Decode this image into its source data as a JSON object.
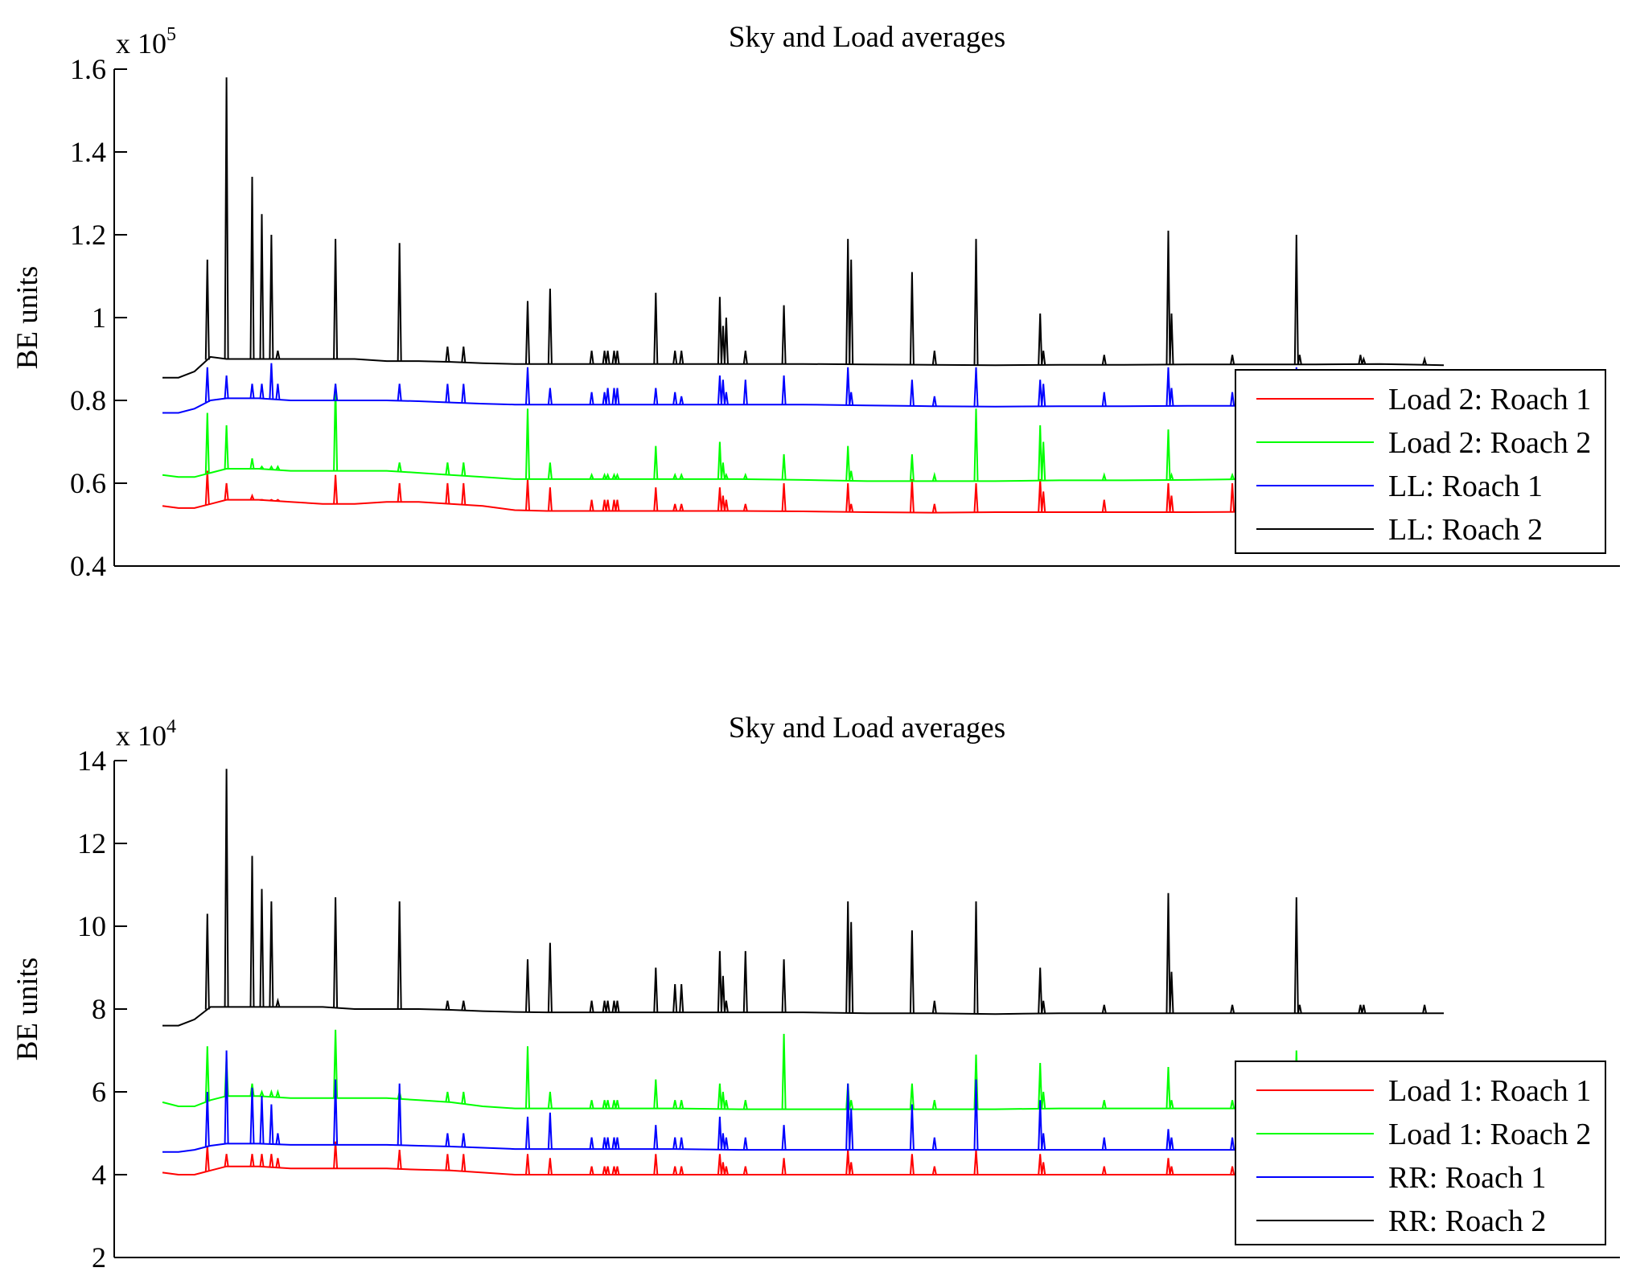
{
  "chart_data": [
    {
      "type": "line",
      "title": "Sky and Load averages",
      "xlabel": "",
      "ylabel": "BE units",
      "y_exponent_label": "x 10",
      "y_exponent_power": "5",
      "ylim": [
        0.4,
        1.6
      ],
      "y_ticks": [
        "0.4",
        "0.6",
        "0.8",
        "1",
        "1.2",
        "1.4",
        "1.6"
      ],
      "x_ticks": [],
      "grid": false,
      "legend_position": "bottom-right",
      "spike_x": [
        1.4,
        2.0,
        2.8,
        3.1,
        3.4,
        3.6,
        5.4,
        7.4,
        8.9,
        9.4,
        11.4,
        12.1,
        13.4,
        13.8,
        13.9,
        14.1,
        14.2,
        15.4,
        16.0,
        16.2,
        17.4,
        17.5,
        17.6,
        18.2,
        19.4,
        21.4,
        21.5,
        23.4,
        24.1,
        25.4,
        27.4,
        27.5,
        29.4,
        31.4,
        31.5,
        33.4,
        35.4,
        35.5,
        37.4,
        37.5,
        39.4
      ],
      "series": [
        {
          "name": "Load 2: Roach 1",
          "color": "#ff0000",
          "x": [
            0,
            0.5,
            1,
            1.5,
            2,
            3,
            4,
            5,
            6,
            7,
            8,
            9,
            10,
            11,
            12,
            14,
            16,
            18,
            20,
            22,
            24,
            26,
            28,
            30,
            32,
            34,
            36,
            38,
            40
          ],
          "values": [
            0.545,
            0.54,
            0.54,
            0.55,
            0.56,
            0.56,
            0.555,
            0.55,
            0.55,
            0.555,
            0.555,
            0.55,
            0.545,
            0.535,
            0.533,
            0.533,
            0.533,
            0.533,
            0.532,
            0.53,
            0.529,
            0.53,
            0.53,
            0.53,
            0.53,
            0.531,
            0.535,
            0.535,
            0.535
          ],
          "spikes": [
            0.63,
            0.6,
            0.57,
            0.56,
            0.56,
            0.56,
            0.62,
            0.6,
            0.6,
            0.6,
            0.61,
            0.59,
            0.56,
            0.56,
            0.56,
            0.56,
            0.56,
            0.59,
            0.55,
            0.55,
            0.59,
            0.57,
            0.56,
            0.55,
            0.6,
            0.6,
            0.55,
            0.61,
            0.55,
            0.6,
            0.61,
            0.58,
            0.56,
            0.6,
            0.57,
            0.6,
            0.6,
            0.58,
            0.58,
            0.56,
            0.57
          ]
        },
        {
          "name": "Load 2: Roach 2",
          "color": "#00ff00",
          "x": [
            0,
            0.5,
            1,
            1.5,
            2,
            3,
            4,
            5,
            6,
            7,
            8,
            9,
            10,
            11,
            12,
            14,
            16,
            18,
            20,
            22,
            24,
            26,
            28,
            30,
            32,
            34,
            36,
            38,
            40
          ],
          "values": [
            0.62,
            0.615,
            0.615,
            0.625,
            0.635,
            0.635,
            0.63,
            0.63,
            0.63,
            0.63,
            0.625,
            0.62,
            0.615,
            0.61,
            0.61,
            0.61,
            0.61,
            0.61,
            0.608,
            0.605,
            0.605,
            0.605,
            0.607,
            0.607,
            0.608,
            0.61,
            0.61,
            0.61,
            0.61
          ],
          "spikes": [
            0.77,
            0.74,
            0.66,
            0.64,
            0.64,
            0.64,
            0.84,
            0.65,
            0.65,
            0.65,
            0.78,
            0.65,
            0.62,
            0.62,
            0.62,
            0.62,
            0.62,
            0.69,
            0.62,
            0.62,
            0.7,
            0.65,
            0.62,
            0.62,
            0.67,
            0.69,
            0.63,
            0.67,
            0.62,
            0.78,
            0.74,
            0.7,
            0.62,
            0.73,
            0.62,
            0.62,
            0.8,
            0.67,
            0.65,
            0.62,
            0.63
          ]
        },
        {
          "name": "LL: Roach 1",
          "color": "#0000ff",
          "x": [
            0,
            0.5,
            1,
            1.5,
            2,
            3,
            4,
            5,
            6,
            7,
            8,
            9,
            10,
            11,
            12,
            14,
            16,
            18,
            20,
            22,
            24,
            26,
            28,
            30,
            32,
            34,
            36,
            38,
            40
          ],
          "values": [
            0.77,
            0.77,
            0.78,
            0.8,
            0.805,
            0.805,
            0.8,
            0.8,
            0.8,
            0.8,
            0.798,
            0.795,
            0.792,
            0.79,
            0.79,
            0.79,
            0.79,
            0.79,
            0.79,
            0.788,
            0.786,
            0.785,
            0.786,
            0.786,
            0.787,
            0.787,
            0.788,
            0.788,
            0.788
          ],
          "spikes": [
            0.88,
            0.86,
            0.84,
            0.84,
            0.89,
            0.84,
            0.84,
            0.84,
            0.84,
            0.84,
            0.88,
            0.83,
            0.82,
            0.82,
            0.83,
            0.83,
            0.83,
            0.83,
            0.82,
            0.81,
            0.86,
            0.85,
            0.82,
            0.85,
            0.86,
            0.88,
            0.82,
            0.85,
            0.81,
            0.88,
            0.85,
            0.84,
            0.82,
            0.88,
            0.83,
            0.82,
            0.88,
            0.84,
            0.83,
            0.81,
            0.82
          ]
        },
        {
          "name": "LL: Roach 2",
          "color": "#000000",
          "x": [
            0,
            0.5,
            1,
            1.5,
            2,
            3,
            4,
            5,
            6,
            7,
            8,
            9,
            10,
            11,
            12,
            14,
            16,
            18,
            20,
            22,
            24,
            26,
            28,
            30,
            32,
            34,
            36,
            38,
            40
          ],
          "values": [
            0.855,
            0.855,
            0.87,
            0.905,
            0.9,
            0.9,
            0.9,
            0.9,
            0.9,
            0.895,
            0.895,
            0.893,
            0.89,
            0.888,
            0.888,
            0.888,
            0.888,
            0.888,
            0.888,
            0.887,
            0.886,
            0.885,
            0.886,
            0.886,
            0.887,
            0.887,
            0.887,
            0.888,
            0.885
          ],
          "spikes": [
            1.14,
            1.58,
            1.34,
            1.25,
            1.2,
            0.92,
            1.19,
            1.18,
            0.93,
            0.93,
            1.04,
            1.07,
            0.92,
            0.92,
            0.92,
            0.92,
            0.92,
            1.06,
            0.92,
            0.92,
            1.05,
            0.98,
            1.0,
            0.92,
            1.03,
            1.19,
            1.14,
            1.11,
            0.92,
            1.19,
            1.01,
            0.92,
            0.91,
            1.21,
            1.01,
            0.91,
            1.2,
            0.91,
            0.91,
            0.9,
            0.9
          ]
        }
      ]
    },
    {
      "type": "line",
      "title": "Sky and Load averages",
      "xlabel": "",
      "ylabel": "BE units",
      "y_exponent_label": "x 10",
      "y_exponent_power": "4",
      "ylim": [
        2,
        14
      ],
      "y_ticks": [
        "2",
        "4",
        "6",
        "8",
        "10",
        "12",
        "14"
      ],
      "x_ticks": [],
      "grid": false,
      "legend_position": "bottom-right",
      "spike_x": [
        1.4,
        2.0,
        2.8,
        3.1,
        3.4,
        3.6,
        5.4,
        7.4,
        8.9,
        9.4,
        11.4,
        12.1,
        13.4,
        13.8,
        13.9,
        14.1,
        14.2,
        15.4,
        16.0,
        16.2,
        17.4,
        17.5,
        17.6,
        18.2,
        19.4,
        21.4,
        21.5,
        23.4,
        24.1,
        25.4,
        27.4,
        27.5,
        29.4,
        31.4,
        31.5,
        33.4,
        35.4,
        35.5,
        37.4,
        37.5,
        39.4
      ],
      "series": [
        {
          "name": "Load 1: Roach 1",
          "color": "#ff0000",
          "x": [
            0,
            0.5,
            1,
            1.5,
            2,
            3,
            4,
            5,
            6,
            7,
            8,
            9,
            10,
            11,
            12,
            14,
            16,
            18,
            20,
            22,
            24,
            26,
            28,
            30,
            32,
            34,
            36,
            38,
            40
          ],
          "values": [
            4.05,
            4.0,
            4.0,
            4.1,
            4.2,
            4.2,
            4.15,
            4.15,
            4.15,
            4.15,
            4.12,
            4.1,
            4.05,
            4.0,
            4.0,
            4.0,
            4.0,
            4.0,
            4.0,
            4.0,
            4.0,
            4.0,
            4.0,
            4.0,
            4.0,
            4.0,
            4.0,
            4.0,
            4.0
          ],
          "spikes": [
            4.7,
            4.5,
            4.5,
            4.5,
            4.5,
            4.4,
            4.8,
            4.6,
            4.5,
            4.5,
            4.5,
            4.4,
            4.2,
            4.2,
            4.2,
            4.2,
            4.2,
            4.5,
            4.2,
            4.2,
            4.5,
            4.3,
            4.2,
            4.2,
            4.4,
            4.6,
            4.3,
            4.5,
            4.2,
            4.6,
            4.5,
            4.3,
            4.2,
            4.4,
            4.2,
            4.2,
            4.5,
            4.3,
            4.3,
            4.2,
            4.2
          ]
        },
        {
          "name": "Load 1: Roach 2",
          "color": "#00ff00",
          "x": [
            0,
            0.5,
            1,
            1.5,
            2,
            3,
            4,
            5,
            6,
            7,
            8,
            9,
            10,
            11,
            12,
            14,
            16,
            18,
            20,
            22,
            24,
            26,
            28,
            30,
            32,
            34,
            36,
            38,
            40
          ],
          "values": [
            5.75,
            5.65,
            5.65,
            5.8,
            5.9,
            5.9,
            5.85,
            5.85,
            5.85,
            5.85,
            5.8,
            5.75,
            5.65,
            5.6,
            5.6,
            5.6,
            5.6,
            5.58,
            5.58,
            5.58,
            5.58,
            5.58,
            5.6,
            5.6,
            5.6,
            5.6,
            5.62,
            5.62,
            5.62
          ],
          "spikes": [
            7.1,
            6.8,
            6.2,
            6.0,
            6.0,
            6.0,
            7.5,
            6.0,
            6.0,
            6.0,
            7.1,
            6.0,
            5.8,
            5.8,
            5.8,
            5.8,
            5.8,
            6.3,
            5.8,
            5.8,
            6.2,
            6.0,
            5.8,
            5.8,
            7.4,
            6.2,
            5.8,
            6.2,
            5.8,
            6.9,
            6.7,
            6.0,
            5.8,
            6.6,
            5.8,
            5.8,
            7.0,
            6.2,
            6.0,
            5.8,
            5.8
          ]
        },
        {
          "name": "RR: Roach 1",
          "color": "#0000ff",
          "x": [
            0,
            0.5,
            1,
            1.5,
            2,
            3,
            4,
            5,
            6,
            7,
            8,
            9,
            10,
            11,
            12,
            14,
            16,
            18,
            20,
            22,
            24,
            26,
            28,
            30,
            32,
            34,
            36,
            38,
            40
          ],
          "values": [
            4.55,
            4.55,
            4.6,
            4.7,
            4.75,
            4.75,
            4.72,
            4.72,
            4.72,
            4.72,
            4.7,
            4.68,
            4.65,
            4.62,
            4.62,
            4.62,
            4.62,
            4.6,
            4.6,
            4.6,
            4.6,
            4.6,
            4.6,
            4.6,
            4.6,
            4.6,
            4.6,
            4.6,
            4.6
          ],
          "spikes": [
            6.0,
            7.0,
            6.1,
            5.9,
            5.7,
            5.0,
            6.3,
            6.2,
            5.0,
            5.0,
            5.4,
            5.5,
            4.9,
            4.9,
            4.9,
            4.9,
            4.9,
            5.2,
            4.9,
            4.9,
            5.4,
            5.0,
            4.9,
            4.9,
            5.2,
            6.2,
            5.6,
            5.7,
            4.9,
            6.3,
            5.8,
            5.0,
            4.9,
            5.1,
            4.9,
            4.9,
            5.0,
            4.9,
            4.9,
            4.8,
            4.8
          ]
        },
        {
          "name": "RR: Roach 2",
          "color": "#000000",
          "x": [
            0,
            0.5,
            1,
            1.5,
            2,
            3,
            4,
            5,
            6,
            7,
            8,
            9,
            10,
            11,
            12,
            14,
            16,
            18,
            20,
            22,
            24,
            26,
            28,
            30,
            32,
            34,
            36,
            38,
            40
          ],
          "values": [
            7.6,
            7.6,
            7.75,
            8.05,
            8.05,
            8.05,
            8.05,
            8.05,
            8.0,
            8.0,
            8.0,
            7.98,
            7.95,
            7.93,
            7.92,
            7.92,
            7.92,
            7.92,
            7.92,
            7.9,
            7.9,
            7.88,
            7.9,
            7.9,
            7.9,
            7.9,
            7.9,
            7.9,
            7.9
          ],
          "spikes": [
            10.3,
            13.8,
            11.7,
            10.9,
            10.6,
            8.2,
            10.7,
            10.6,
            8.2,
            8.2,
            9.2,
            9.6,
            8.2,
            8.2,
            8.2,
            8.2,
            8.2,
            9.0,
            8.6,
            8.6,
            9.4,
            8.8,
            8.2,
            9.4,
            9.2,
            10.6,
            10.1,
            9.9,
            8.2,
            10.6,
            9.0,
            8.2,
            8.1,
            10.8,
            8.9,
            8.1,
            10.7,
            8.1,
            8.1,
            8.1,
            8.1
          ]
        }
      ]
    }
  ]
}
